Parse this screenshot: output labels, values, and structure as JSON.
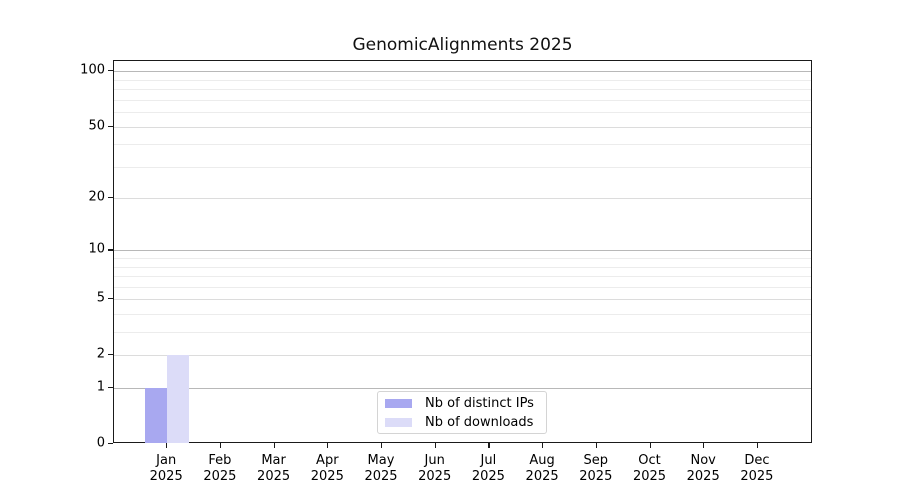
{
  "chart_data": {
    "type": "bar",
    "title": "GenomicAlignments 2025",
    "x_axis": {
      "months": [
        "Jan",
        "Feb",
        "Mar",
        "Apr",
        "May",
        "Jun",
        "Jul",
        "Aug",
        "Sep",
        "Oct",
        "Nov",
        "Dec"
      ],
      "year": "2025"
    },
    "y_axis": {
      "scale": "log1p",
      "tick_labels": [
        0,
        1,
        2,
        5,
        10,
        20,
        50,
        100
      ],
      "gridlines_major": [
        1,
        10,
        100
      ],
      "gridlines_mid": [
        2,
        5,
        20,
        50
      ],
      "gridlines_minor": [
        3,
        4,
        6,
        7,
        8,
        9,
        30,
        40,
        60,
        70,
        80,
        90
      ],
      "range": [
        0,
        116
      ]
    },
    "series": [
      {
        "name": "Nb of distinct IPs",
        "color": "#a8a8f0",
        "values": [
          1,
          0,
          0,
          0,
          0,
          0,
          0,
          0,
          0,
          0,
          0,
          0
        ]
      },
      {
        "name": "Nb of downloads",
        "color": "#dcdcf8",
        "values": [
          2,
          0,
          0,
          0,
          0,
          0,
          0,
          0,
          0,
          0,
          0,
          0
        ]
      }
    ],
    "legend": {
      "position": "bottom-center"
    },
    "colors": {
      "axis": "#1a1a1a",
      "grid_major": "#b8b8b8",
      "grid_mid": "#dcdcdc",
      "grid_minor": "#ececec",
      "background": "#ffffff"
    }
  }
}
